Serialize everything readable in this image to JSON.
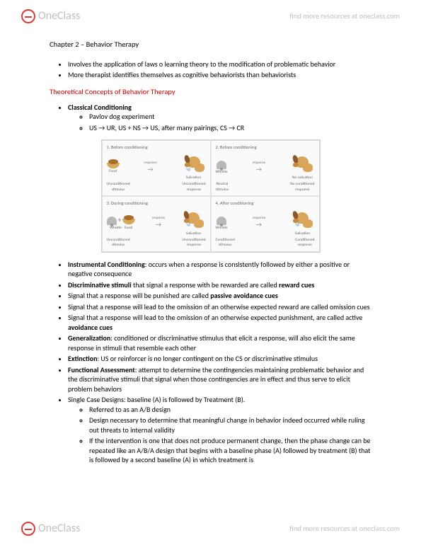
{
  "header": {
    "logo_one": "One",
    "logo_class": "Class",
    "find_more": "find more resources at oneclass.com"
  },
  "chapter": {
    "title": "Chapter 2 – Behavior Therapy"
  },
  "intro_bullets": [
    "Involves the application of laws o learning theory to the modification of problematic behavior",
    "More therapist identifies themselves as cognitive behaviorists than behaviorists"
  ],
  "section_heading": "Theoretical Concepts of Behavior Therapy",
  "classical": {
    "title": "Classical Conditioning",
    "sub": [
      "Pavlov dog experiment",
      "US → UR, US + NS → US, after many pairings, CS → CR"
    ]
  },
  "diagram": {
    "panels": [
      {
        "title": "1. Before conditioning",
        "left_label": "Unconditioned\nstimulus",
        "left_icon": "food",
        "arrow_label": "response",
        "right_label": "Unconditioned\nresponse",
        "right_sub": "Salivation",
        "drops": true
      },
      {
        "title": "2. Before conditioning",
        "left_label": "Neutral\nstimulus",
        "left_icon": "bell",
        "arrow_label": "response",
        "right_label": "No conditioned\nresponse",
        "right_sub": "No salivation",
        "drops": false
      },
      {
        "title": "3. During conditioning",
        "left_label": "Unconditioned\nstimulus",
        "left_icon": "bell+food",
        "arrow_label": "response",
        "right_label": "Unconditioned\nresponse",
        "right_sub": "Salivation",
        "drops": true
      },
      {
        "title": "4. After conditioning",
        "left_label": "Conditioned\nstimulus",
        "left_icon": "bell",
        "arrow_label": "response",
        "right_label": "Conditioned\nresponse",
        "right_sub": "Salivation",
        "drops": true
      }
    ]
  },
  "body_bullets": [
    {
      "bold": "Instrumental Conditioning",
      "rest": ": occurs when a response is consistently followed by either a positive or negative consequence"
    },
    {
      "bold": "Discriminative stimuli",
      "rest": " that signal a response with be rewarded are called ",
      "bold2": "reward cues"
    },
    {
      "rest_pre": "Signal that a response will be punished are called ",
      "bold": "passive avoidance cues"
    },
    {
      "rest_pre": "Signal that a response will lead to the omission of an otherwise expected reward are called omission cues"
    },
    {
      "rest_pre": "Signal that a response will lead to the omission of an otherwise expected punishment, are called active ",
      "bold": "avoidance cues"
    },
    {
      "bold": "Generalization",
      "rest": ": conditioned or discriminative stimulus that elicit a response, will also elicit the same response in stimuli that resemble each other"
    },
    {
      "bold": "Extinction",
      "rest": ": US or reinforcer is no longer contingent on the CS or discriminative stimulus"
    },
    {
      "bold": "Functional Assessment",
      "rest": ": attempt to determine the contingencies maintaining problematic behavior and the discriminative stimuli that signal when those contingencies are in effect and thus serve to elicit problem behaviors"
    },
    {
      "rest_pre": "Single Case Designs: baseline (A) is followed by Treatment (B)."
    }
  ],
  "sub_bullets": [
    "Referred to as an A/B design",
    "Design necessary to determine that meaningful change in behavior indeed occurred while ruling out threats to internal validity",
    "If the intervention is one that does not produce permanent change, then the phase change can be repeated like an A/B/A design that begins with a baseline phase (A) followed by treatment (B) that is followed by a second baseline (A) in which treatment is"
  ],
  "diagram_extra": {
    "food_label": "Food",
    "whistle_label": "Whistle"
  }
}
